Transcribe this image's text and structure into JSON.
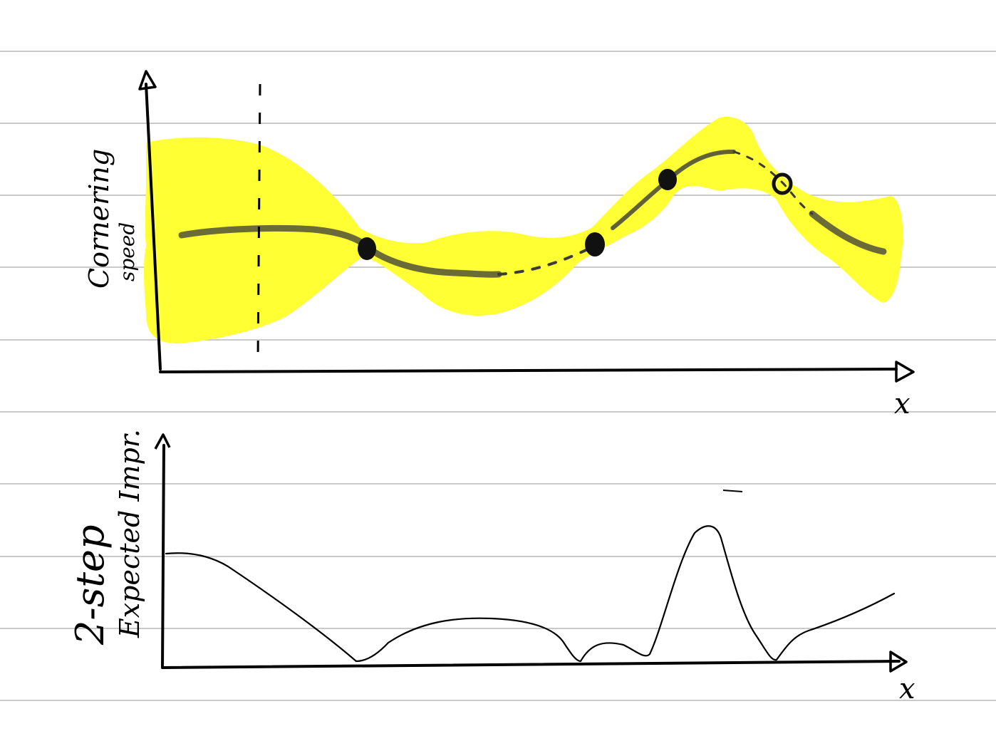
{
  "top_plot": {
    "y_label_line1": "Cornering",
    "y_label_line2": "speed",
    "x_label": "x"
  },
  "bottom_plot": {
    "y_label_line1": "2-step",
    "y_label_line2": "Expected Impr.",
    "x_label": "x"
  },
  "colors": {
    "paper": "#ffffff",
    "ruled_lines": "#b9b9b9",
    "uncertainty_band": "#ffff33",
    "ink": "#000000"
  },
  "observations_count_shown": 4
}
